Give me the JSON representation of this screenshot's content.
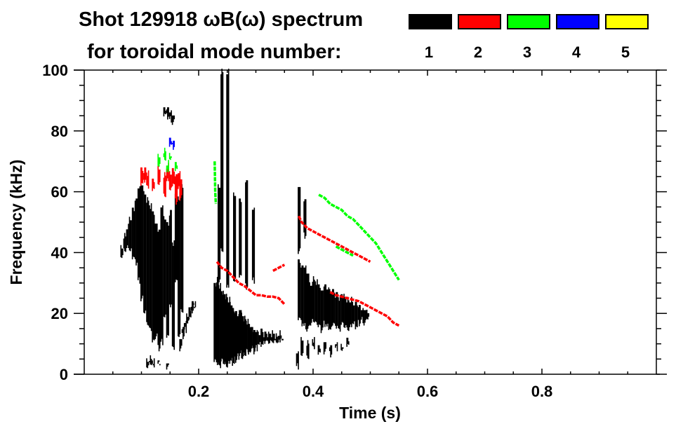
{
  "title": {
    "line1": "Shot 129918 ωB(ω) spectrum",
    "line2": "for toroidal mode number:"
  },
  "legend": [
    {
      "label": "1",
      "color": "#000000"
    },
    {
      "label": "2",
      "color": "#ff0000"
    },
    {
      "label": "3",
      "color": "#00ff00"
    },
    {
      "label": "4",
      "color": "#0000ff"
    },
    {
      "label": "5",
      "color": "#ffff00"
    }
  ],
  "chart_data": {
    "type": "heatmap",
    "title": "Shot 129918 ωB(ω) spectrum for toroidal mode number:",
    "xlabel": "Time (s)",
    "ylabel": "Frequency (kHz)",
    "xlim": [
      0,
      1.0
    ],
    "ylim": [
      0,
      100
    ],
    "x_ticks": [
      {
        "value": 0.2,
        "label": "0.2"
      },
      {
        "value": 0.4,
        "label": "0.4"
      },
      {
        "value": 0.6,
        "label": "0.6"
      },
      {
        "value": 0.8,
        "label": "0.8"
      }
    ],
    "y_ticks": [
      {
        "value": 0,
        "label": "0"
      },
      {
        "value": 20,
        "label": "20"
      },
      {
        "value": 40,
        "label": "40"
      },
      {
        "value": 60,
        "label": "60"
      },
      {
        "value": 80,
        "label": "80"
      },
      {
        "value": 100,
        "label": "100"
      }
    ],
    "x_minor_step": 0.05,
    "y_minor_step": 5,
    "legend_placement": "top-right",
    "grid": false,
    "blobs": [
      {
        "mode": 1,
        "name": "early-broadband-n1",
        "columns": [
          [
            0.065,
            38,
            42
          ],
          [
            0.07,
            40,
            46
          ],
          [
            0.075,
            41,
            49
          ],
          [
            0.08,
            40,
            52
          ],
          [
            0.085,
            38,
            55
          ],
          [
            0.09,
            36,
            58
          ],
          [
            0.095,
            30,
            62
          ],
          [
            0.1,
            24,
            63
          ],
          [
            0.105,
            20,
            60
          ],
          [
            0.11,
            16,
            58
          ],
          [
            0.115,
            14,
            56
          ],
          [
            0.12,
            10,
            54
          ],
          [
            0.125,
            12,
            50
          ],
          [
            0.13,
            8,
            48
          ],
          [
            0.135,
            10,
            56
          ],
          [
            0.14,
            18,
            52
          ],
          [
            0.145,
            12,
            50
          ],
          [
            0.15,
            22,
            54
          ],
          [
            0.155,
            8,
            44
          ],
          [
            0.16,
            30,
            60
          ],
          [
            0.165,
            12,
            58
          ],
          [
            0.17,
            20,
            62
          ]
        ]
      },
      {
        "mode": 1,
        "name": "early-top-blob-n1",
        "columns": [
          [
            0.14,
            85,
            88
          ],
          [
            0.145,
            84,
            88
          ],
          [
            0.15,
            83,
            87
          ],
          [
            0.155,
            82,
            86
          ]
        ]
      },
      {
        "mode": 1,
        "name": "early-low-n1",
        "columns": [
          [
            0.11,
            2,
            5
          ],
          [
            0.115,
            3,
            6
          ],
          [
            0.12,
            2,
            5
          ],
          [
            0.13,
            3,
            5
          ],
          [
            0.145,
            2,
            4
          ]
        ]
      },
      {
        "mode": 1,
        "name": "chirp-down-n1",
        "columns": [
          [
            0.168,
            8,
            12
          ],
          [
            0.172,
            12,
            16
          ],
          [
            0.176,
            14,
            18
          ],
          [
            0.18,
            16,
            20
          ],
          [
            0.184,
            18,
            22
          ],
          [
            0.188,
            20,
            24
          ],
          [
            0.192,
            22,
            24
          ]
        ]
      },
      {
        "mode": 1,
        "name": "mid-broadband-n1",
        "columns": [
          [
            0.228,
            4,
            30
          ],
          [
            0.232,
            3,
            32
          ],
          [
            0.236,
            2,
            30
          ],
          [
            0.24,
            4,
            28
          ],
          [
            0.244,
            3,
            27
          ],
          [
            0.248,
            2,
            26
          ],
          [
            0.252,
            3,
            25
          ],
          [
            0.256,
            4,
            24
          ],
          [
            0.26,
            3,
            22
          ],
          [
            0.264,
            4,
            21
          ],
          [
            0.268,
            5,
            20
          ],
          [
            0.272,
            6,
            22
          ],
          [
            0.276,
            5,
            20
          ],
          [
            0.28,
            6,
            19
          ],
          [
            0.284,
            7,
            18
          ],
          [
            0.288,
            6,
            17
          ],
          [
            0.292,
            8,
            16
          ],
          [
            0.296,
            7,
            15
          ],
          [
            0.3,
            8,
            15
          ],
          [
            0.305,
            9,
            14
          ],
          [
            0.31,
            9,
            15
          ],
          [
            0.315,
            10,
            14
          ],
          [
            0.32,
            10,
            14
          ],
          [
            0.325,
            10,
            14
          ],
          [
            0.33,
            10,
            14
          ],
          [
            0.335,
            10,
            13
          ],
          [
            0.34,
            10,
            14
          ],
          [
            0.345,
            11,
            13
          ]
        ]
      },
      {
        "mode": 1,
        "name": "mid-spikes-n1",
        "columns": [
          [
            0.235,
            30,
            62
          ],
          [
            0.24,
            40,
            100
          ],
          [
            0.25,
            28,
            100
          ],
          [
            0.262,
            30,
            60
          ],
          [
            0.272,
            32,
            58
          ],
          [
            0.283,
            28,
            64
          ],
          [
            0.295,
            30,
            55
          ]
        ]
      },
      {
        "mode": 1,
        "name": "late-bursts-n1",
        "columns": [
          [
            0.375,
            18,
            38
          ],
          [
            0.38,
            16,
            36
          ],
          [
            0.385,
            15,
            36
          ],
          [
            0.39,
            14,
            34
          ],
          [
            0.395,
            16,
            30
          ],
          [
            0.4,
            17,
            32
          ],
          [
            0.405,
            16,
            31
          ],
          [
            0.41,
            15,
            30
          ],
          [
            0.415,
            14,
            28
          ],
          [
            0.42,
            16,
            30
          ],
          [
            0.425,
            15,
            29
          ],
          [
            0.43,
            14,
            28
          ],
          [
            0.435,
            16,
            28
          ],
          [
            0.44,
            15,
            27
          ],
          [
            0.445,
            14,
            26
          ],
          [
            0.45,
            16,
            27
          ],
          [
            0.455,
            15,
            26
          ],
          [
            0.46,
            14,
            25
          ],
          [
            0.465,
            15,
            25
          ],
          [
            0.47,
            16,
            24
          ],
          [
            0.475,
            15,
            24
          ],
          [
            0.48,
            16,
            23
          ],
          [
            0.485,
            17,
            22
          ],
          [
            0.49,
            16,
            22
          ],
          [
            0.495,
            18,
            21
          ]
        ]
      },
      {
        "mode": 1,
        "name": "late-low-n1",
        "columns": [
          [
            0.38,
            6,
            12
          ],
          [
            0.39,
            5,
            11
          ],
          [
            0.4,
            8,
            12
          ],
          [
            0.41,
            6,
            10
          ],
          [
            0.42,
            7,
            11
          ],
          [
            0.43,
            6,
            10
          ],
          [
            0.44,
            8,
            11
          ],
          [
            0.45,
            7,
            10
          ],
          [
            0.46,
            9,
            12
          ]
        ]
      },
      {
        "mode": 1,
        "name": "late-spikes-n1",
        "columns": [
          [
            0.375,
            40,
            62
          ],
          [
            0.385,
            45,
            58
          ],
          [
            0.372,
            2,
            8
          ]
        ]
      },
      {
        "mode": 2,
        "name": "early-n2",
        "columns": [
          [
            0.1,
            62,
            68
          ],
          [
            0.105,
            63,
            68
          ],
          [
            0.11,
            61,
            67
          ],
          [
            0.12,
            60,
            65
          ],
          [
            0.13,
            62,
            68
          ],
          [
            0.14,
            58,
            66
          ],
          [
            0.145,
            63,
            69
          ],
          [
            0.15,
            60,
            67
          ],
          [
            0.155,
            62,
            68
          ],
          [
            0.16,
            56,
            66
          ],
          [
            0.165,
            60,
            67
          ],
          [
            0.168,
            57,
            65
          ]
        ]
      },
      {
        "mode": 3,
        "name": "early-n3",
        "columns": [
          [
            0.13,
            68,
            72
          ],
          [
            0.14,
            70,
            74
          ],
          [
            0.145,
            66,
            70
          ],
          [
            0.15,
            70,
            73
          ],
          [
            0.16,
            67,
            70
          ]
        ]
      },
      {
        "mode": 4,
        "name": "early-n4",
        "columns": [
          [
            0.15,
            75,
            78
          ],
          [
            0.155,
            74,
            77
          ]
        ]
      }
    ],
    "lines": [
      {
        "mode": 2,
        "name": "mid-chirp-n2",
        "points": [
          [
            0.232,
            37
          ],
          [
            0.24,
            35
          ],
          [
            0.25,
            34
          ],
          [
            0.26,
            32
          ],
          [
            0.27,
            30
          ],
          [
            0.28,
            29
          ],
          [
            0.29,
            27.5
          ],
          [
            0.3,
            26
          ],
          [
            0.31,
            26
          ],
          [
            0.32,
            25.5
          ],
          [
            0.33,
            25.5
          ],
          [
            0.34,
            25
          ],
          [
            0.35,
            23
          ]
        ]
      },
      {
        "mode": 2,
        "name": "mid-upper-n2",
        "points": [
          [
            0.33,
            34
          ],
          [
            0.34,
            35
          ],
          [
            0.35,
            36
          ]
        ]
      },
      {
        "mode": 2,
        "name": "late-upper-n2",
        "points": [
          [
            0.375,
            52
          ],
          [
            0.38,
            50
          ],
          [
            0.39,
            48
          ],
          [
            0.4,
            47
          ],
          [
            0.41,
            46
          ],
          [
            0.42,
            45
          ],
          [
            0.43,
            44
          ],
          [
            0.44,
            43
          ],
          [
            0.45,
            42
          ],
          [
            0.46,
            41
          ],
          [
            0.47,
            40
          ],
          [
            0.48,
            39
          ],
          [
            0.49,
            38
          ],
          [
            0.5,
            37
          ]
        ]
      },
      {
        "mode": 2,
        "name": "late-lower-n2",
        "points": [
          [
            0.43,
            27
          ],
          [
            0.44,
            26
          ],
          [
            0.45,
            25.5
          ],
          [
            0.46,
            25
          ],
          [
            0.47,
            24.5
          ],
          [
            0.48,
            24
          ],
          [
            0.49,
            23
          ],
          [
            0.5,
            22
          ],
          [
            0.51,
            21
          ],
          [
            0.52,
            20
          ],
          [
            0.53,
            19
          ],
          [
            0.54,
            17
          ],
          [
            0.55,
            16
          ]
        ]
      },
      {
        "mode": 3,
        "name": "late-upper-n3",
        "points": [
          [
            0.41,
            59
          ],
          [
            0.42,
            58
          ],
          [
            0.43,
            56
          ],
          [
            0.44,
            55
          ],
          [
            0.45,
            54
          ],
          [
            0.46,
            52
          ],
          [
            0.47,
            51
          ],
          [
            0.48,
            49
          ],
          [
            0.49,
            47
          ],
          [
            0.5,
            45
          ],
          [
            0.51,
            43
          ],
          [
            0.52,
            40
          ],
          [
            0.53,
            37
          ],
          [
            0.54,
            34
          ],
          [
            0.55,
            31
          ]
        ]
      },
      {
        "mode": 3,
        "name": "late-lower-n3",
        "points": [
          [
            0.44,
            42
          ],
          [
            0.45,
            41
          ],
          [
            0.46,
            40
          ],
          [
            0.47,
            39
          ]
        ]
      },
      {
        "mode": 3,
        "name": "mid-n3",
        "points": [
          [
            0.228,
            70
          ],
          [
            0.229,
            60
          ],
          [
            0.23,
            56
          ]
        ]
      }
    ]
  },
  "colors": {
    "1": "#000000",
    "2": "#ff0000",
    "3": "#00ff00",
    "4": "#0000ff",
    "5": "#ffff00"
  }
}
